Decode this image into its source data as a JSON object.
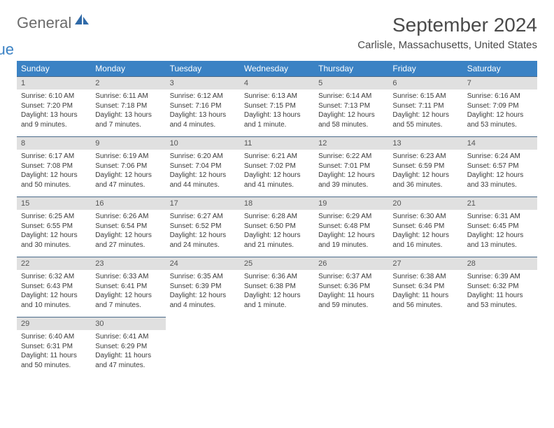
{
  "brand": {
    "text1": "General",
    "text2": "Blue",
    "icon_color": "#2f6aa8"
  },
  "title": "September 2024",
  "location": "Carlisle, Massachusetts, United States",
  "colors": {
    "header_bg": "#3b82c4",
    "header_text": "#ffffff",
    "daynum_bg": "#e0e0e0",
    "daynum_border": "#4a6a8a",
    "body_text": "#3a3a3a",
    "title_text": "#4a4a4a"
  },
  "days_of_week": [
    "Sunday",
    "Monday",
    "Tuesday",
    "Wednesday",
    "Thursday",
    "Friday",
    "Saturday"
  ],
  "weeks": [
    {
      "nums": [
        "1",
        "2",
        "3",
        "4",
        "5",
        "6",
        "7"
      ],
      "cells": [
        {
          "sunrise": "Sunrise: 6:10 AM",
          "sunset": "Sunset: 7:20 PM",
          "day1": "Daylight: 13 hours",
          "day2": "and 9 minutes."
        },
        {
          "sunrise": "Sunrise: 6:11 AM",
          "sunset": "Sunset: 7:18 PM",
          "day1": "Daylight: 13 hours",
          "day2": "and 7 minutes."
        },
        {
          "sunrise": "Sunrise: 6:12 AM",
          "sunset": "Sunset: 7:16 PM",
          "day1": "Daylight: 13 hours",
          "day2": "and 4 minutes."
        },
        {
          "sunrise": "Sunrise: 6:13 AM",
          "sunset": "Sunset: 7:15 PM",
          "day1": "Daylight: 13 hours",
          "day2": "and 1 minute."
        },
        {
          "sunrise": "Sunrise: 6:14 AM",
          "sunset": "Sunset: 7:13 PM",
          "day1": "Daylight: 12 hours",
          "day2": "and 58 minutes."
        },
        {
          "sunrise": "Sunrise: 6:15 AM",
          "sunset": "Sunset: 7:11 PM",
          "day1": "Daylight: 12 hours",
          "day2": "and 55 minutes."
        },
        {
          "sunrise": "Sunrise: 6:16 AM",
          "sunset": "Sunset: 7:09 PM",
          "day1": "Daylight: 12 hours",
          "day2": "and 53 minutes."
        }
      ]
    },
    {
      "nums": [
        "8",
        "9",
        "10",
        "11",
        "12",
        "13",
        "14"
      ],
      "cells": [
        {
          "sunrise": "Sunrise: 6:17 AM",
          "sunset": "Sunset: 7:08 PM",
          "day1": "Daylight: 12 hours",
          "day2": "and 50 minutes."
        },
        {
          "sunrise": "Sunrise: 6:19 AM",
          "sunset": "Sunset: 7:06 PM",
          "day1": "Daylight: 12 hours",
          "day2": "and 47 minutes."
        },
        {
          "sunrise": "Sunrise: 6:20 AM",
          "sunset": "Sunset: 7:04 PM",
          "day1": "Daylight: 12 hours",
          "day2": "and 44 minutes."
        },
        {
          "sunrise": "Sunrise: 6:21 AM",
          "sunset": "Sunset: 7:02 PM",
          "day1": "Daylight: 12 hours",
          "day2": "and 41 minutes."
        },
        {
          "sunrise": "Sunrise: 6:22 AM",
          "sunset": "Sunset: 7:01 PM",
          "day1": "Daylight: 12 hours",
          "day2": "and 39 minutes."
        },
        {
          "sunrise": "Sunrise: 6:23 AM",
          "sunset": "Sunset: 6:59 PM",
          "day1": "Daylight: 12 hours",
          "day2": "and 36 minutes."
        },
        {
          "sunrise": "Sunrise: 6:24 AM",
          "sunset": "Sunset: 6:57 PM",
          "day1": "Daylight: 12 hours",
          "day2": "and 33 minutes."
        }
      ]
    },
    {
      "nums": [
        "15",
        "16",
        "17",
        "18",
        "19",
        "20",
        "21"
      ],
      "cells": [
        {
          "sunrise": "Sunrise: 6:25 AM",
          "sunset": "Sunset: 6:55 PM",
          "day1": "Daylight: 12 hours",
          "day2": "and 30 minutes."
        },
        {
          "sunrise": "Sunrise: 6:26 AM",
          "sunset": "Sunset: 6:54 PM",
          "day1": "Daylight: 12 hours",
          "day2": "and 27 minutes."
        },
        {
          "sunrise": "Sunrise: 6:27 AM",
          "sunset": "Sunset: 6:52 PM",
          "day1": "Daylight: 12 hours",
          "day2": "and 24 minutes."
        },
        {
          "sunrise": "Sunrise: 6:28 AM",
          "sunset": "Sunset: 6:50 PM",
          "day1": "Daylight: 12 hours",
          "day2": "and 21 minutes."
        },
        {
          "sunrise": "Sunrise: 6:29 AM",
          "sunset": "Sunset: 6:48 PM",
          "day1": "Daylight: 12 hours",
          "day2": "and 19 minutes."
        },
        {
          "sunrise": "Sunrise: 6:30 AM",
          "sunset": "Sunset: 6:46 PM",
          "day1": "Daylight: 12 hours",
          "day2": "and 16 minutes."
        },
        {
          "sunrise": "Sunrise: 6:31 AM",
          "sunset": "Sunset: 6:45 PM",
          "day1": "Daylight: 12 hours",
          "day2": "and 13 minutes."
        }
      ]
    },
    {
      "nums": [
        "22",
        "23",
        "24",
        "25",
        "26",
        "27",
        "28"
      ],
      "cells": [
        {
          "sunrise": "Sunrise: 6:32 AM",
          "sunset": "Sunset: 6:43 PM",
          "day1": "Daylight: 12 hours",
          "day2": "and 10 minutes."
        },
        {
          "sunrise": "Sunrise: 6:33 AM",
          "sunset": "Sunset: 6:41 PM",
          "day1": "Daylight: 12 hours",
          "day2": "and 7 minutes."
        },
        {
          "sunrise": "Sunrise: 6:35 AM",
          "sunset": "Sunset: 6:39 PM",
          "day1": "Daylight: 12 hours",
          "day2": "and 4 minutes."
        },
        {
          "sunrise": "Sunrise: 6:36 AM",
          "sunset": "Sunset: 6:38 PM",
          "day1": "Daylight: 12 hours",
          "day2": "and 1 minute."
        },
        {
          "sunrise": "Sunrise: 6:37 AM",
          "sunset": "Sunset: 6:36 PM",
          "day1": "Daylight: 11 hours",
          "day2": "and 59 minutes."
        },
        {
          "sunrise": "Sunrise: 6:38 AM",
          "sunset": "Sunset: 6:34 PM",
          "day1": "Daylight: 11 hours",
          "day2": "and 56 minutes."
        },
        {
          "sunrise": "Sunrise: 6:39 AM",
          "sunset": "Sunset: 6:32 PM",
          "day1": "Daylight: 11 hours",
          "day2": "and 53 minutes."
        }
      ]
    },
    {
      "nums": [
        "29",
        "30",
        "",
        "",
        "",
        "",
        ""
      ],
      "cells": [
        {
          "sunrise": "Sunrise: 6:40 AM",
          "sunset": "Sunset: 6:31 PM",
          "day1": "Daylight: 11 hours",
          "day2": "and 50 minutes."
        },
        {
          "sunrise": "Sunrise: 6:41 AM",
          "sunset": "Sunset: 6:29 PM",
          "day1": "Daylight: 11 hours",
          "day2": "and 47 minutes."
        },
        null,
        null,
        null,
        null,
        null
      ]
    }
  ]
}
